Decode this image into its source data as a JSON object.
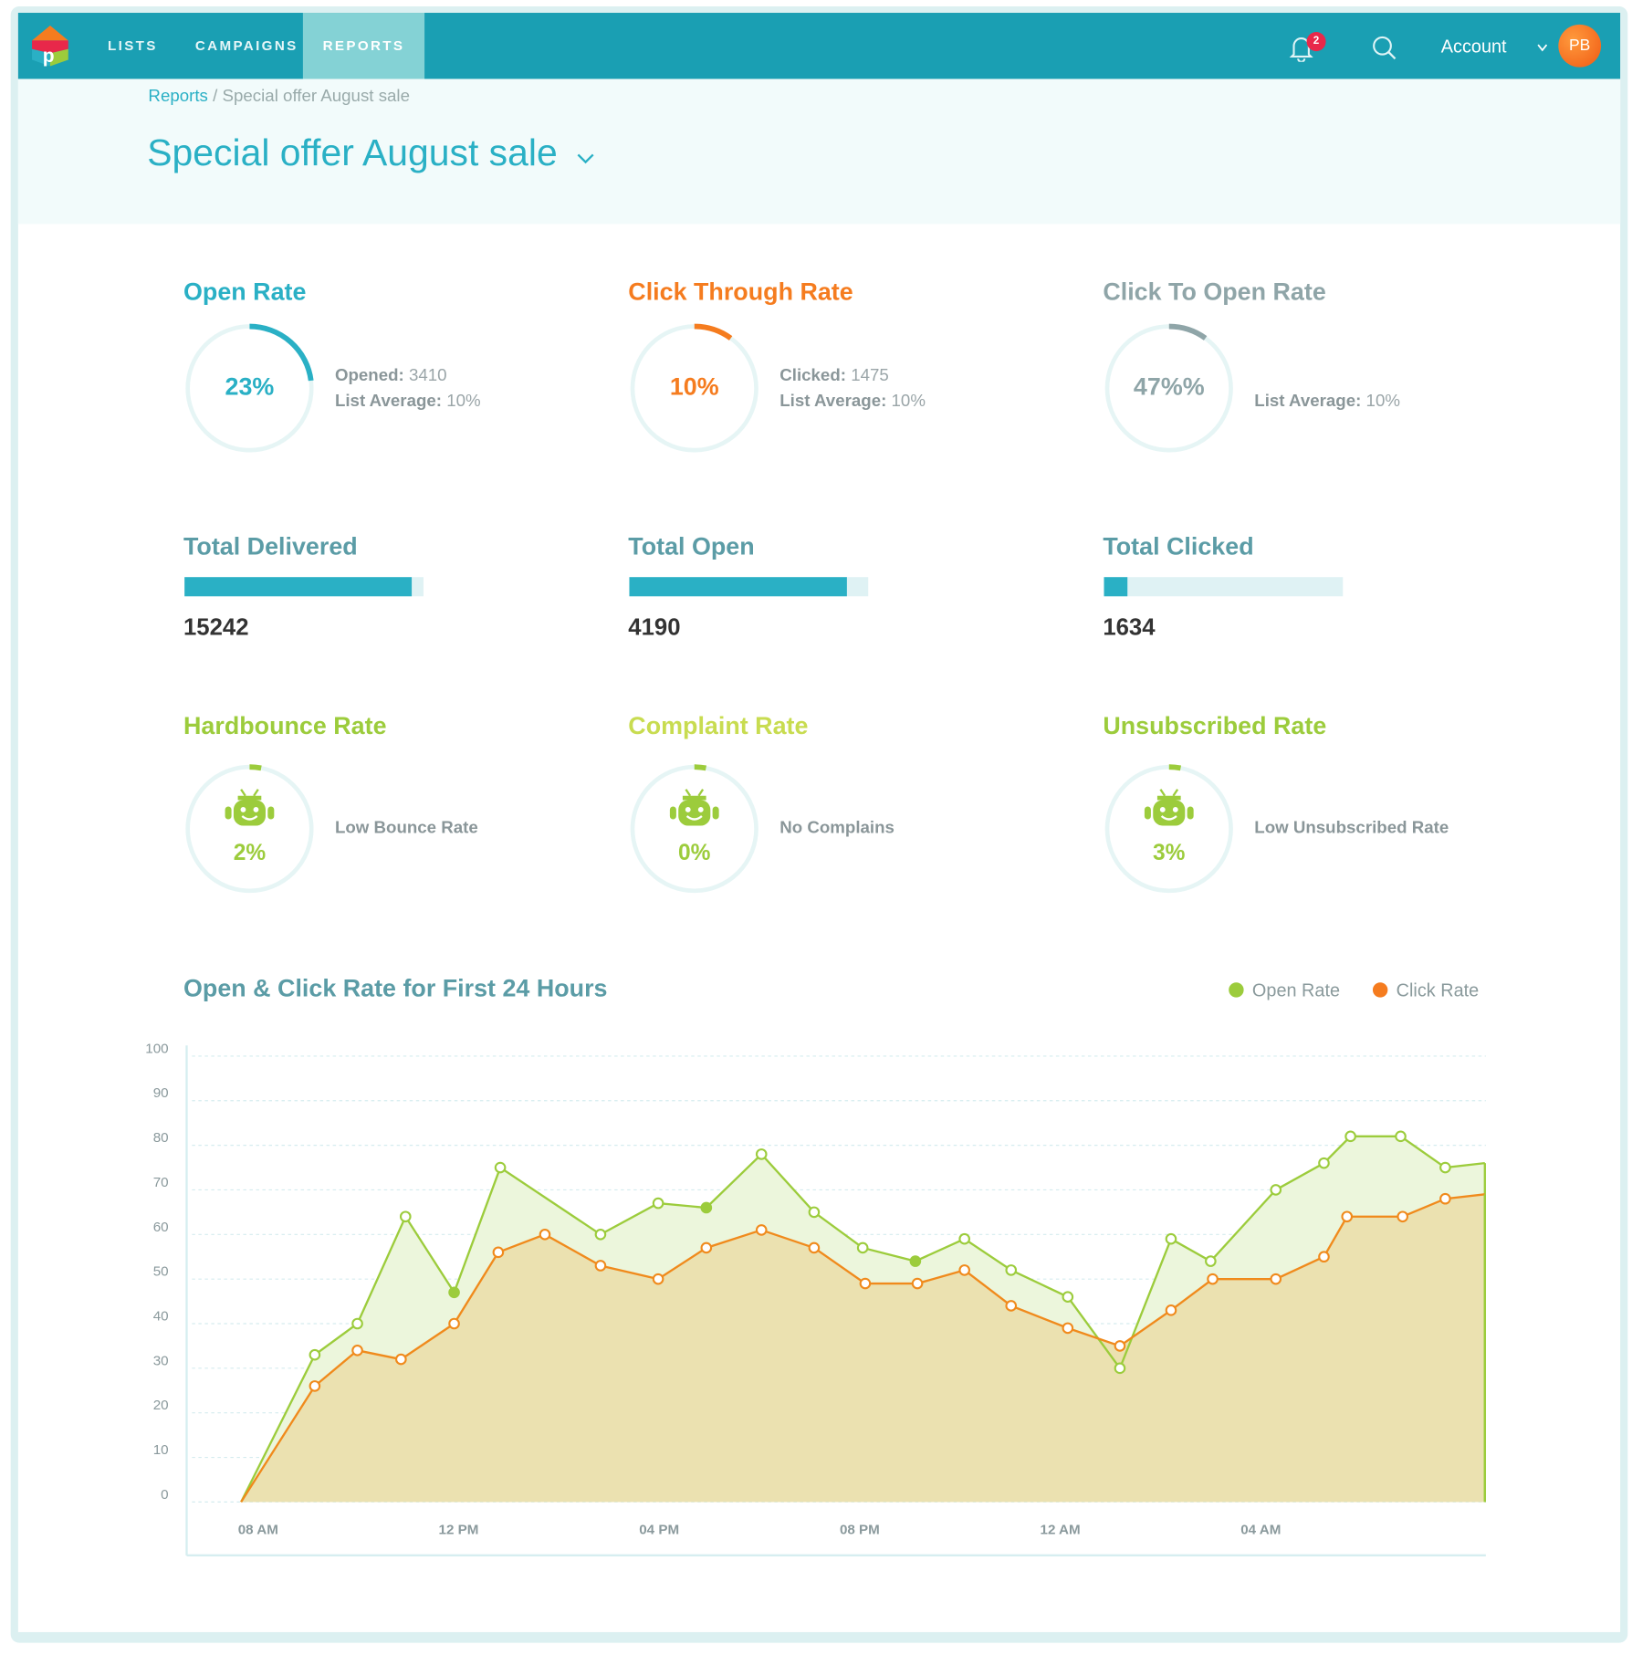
{
  "nav": {
    "items": [
      "LISTS",
      "CAMPAIGNS",
      "REPORTS"
    ],
    "active": "REPORTS",
    "notification_count": "2",
    "account_label": "Account",
    "avatar_initials": "PB"
  },
  "breadcrumb": {
    "root": "Reports",
    "separator": "/",
    "current": "Special offer August sale"
  },
  "page_title": "Special offer August sale",
  "colors": {
    "primary": "#1a9fb3",
    "teal": "#2ab0c5",
    "orange": "#f57c1f",
    "gray": "#8fa5a8",
    "green": "#9ccc3c",
    "yellow_green": "#c8dc50"
  },
  "rates": [
    {
      "title": "Open Rate",
      "value": "23%",
      "fill": 0.23,
      "lines": [
        {
          "label": "Opened:",
          "value": "3410"
        },
        {
          "label": "List Average:",
          "value": "10%"
        }
      ]
    },
    {
      "title": "Click Through Rate",
      "value": "10%",
      "fill": 0.1,
      "lines": [
        {
          "label": "Clicked:",
          "value": "1475"
        },
        {
          "label": "List Average:",
          "value": "10%"
        }
      ]
    },
    {
      "title": "Click To Open Rate",
      "value": "47%%",
      "fill": 0.1,
      "lines": [
        {
          "label": "List Average:",
          "value": "10%"
        }
      ]
    }
  ],
  "totals": [
    {
      "title": "Total Delivered",
      "value": "15242",
      "fill": 0.95
    },
    {
      "title": "Total Open",
      "value": "4190",
      "fill": 0.91
    },
    {
      "title": "Total Clicked",
      "value": "1634",
      "fill": 0.1
    }
  ],
  "health": [
    {
      "title": "Hardbounce Rate",
      "value": "2%",
      "fill": 0.03,
      "note": "Low Bounce Rate"
    },
    {
      "title": "Complaint Rate",
      "value": "0%",
      "fill": 0.03,
      "note": "No Complains"
    },
    {
      "title": "Unsubscribed Rate",
      "value": "3%",
      "fill": 0.03,
      "note": "Low Unsubscribed Rate"
    }
  ],
  "chart_data": {
    "type": "area",
    "title": "Open & Click Rate for First 24 Hours",
    "legend": [
      "Open Rate",
      "Click Rate"
    ],
    "legend_position": "top-right",
    "ylim": [
      0,
      100
    ],
    "yticks": [
      0,
      10,
      20,
      30,
      40,
      50,
      60,
      70,
      80,
      90,
      100
    ],
    "xlabel_unit": "hours after 08 AM",
    "xticks": [
      {
        "h": 0,
        "label": "08 AM"
      },
      {
        "h": 4,
        "label": "12 PM"
      },
      {
        "h": 8,
        "label": "04 PM"
      },
      {
        "h": 12,
        "label": "08 PM"
      },
      {
        "h": 16,
        "label": "12 AM"
      },
      {
        "h": 20,
        "label": "04 AM"
      }
    ],
    "series": [
      {
        "name": "Open Rate",
        "color": "#9ccc3c",
        "fill": "#ecf6dc",
        "points": [
          [
            -0.34,
            0
          ],
          [
            1.13,
            33
          ],
          [
            1.98,
            40
          ],
          [
            2.94,
            64
          ],
          [
            3.91,
            47
          ],
          [
            4.83,
            75
          ],
          [
            6.83,
            60
          ],
          [
            7.98,
            67
          ],
          [
            8.94,
            66
          ],
          [
            10.04,
            78
          ],
          [
            11.09,
            65
          ],
          [
            12.06,
            57
          ],
          [
            13.11,
            54
          ],
          [
            14.09,
            59
          ],
          [
            15.02,
            52
          ],
          [
            16.15,
            46
          ],
          [
            17.19,
            30
          ],
          [
            18.21,
            59
          ],
          [
            19.0,
            54
          ],
          [
            20.3,
            70
          ],
          [
            21.26,
            76
          ],
          [
            21.79,
            82
          ],
          [
            22.79,
            82
          ],
          [
            23.68,
            75
          ],
          [
            24.47,
            76
          ]
        ]
      },
      {
        "name": "Click Rate",
        "color": "#f08a1c",
        "fill": "#ebe1b0",
        "points": [
          [
            -0.34,
            0
          ],
          [
            1.13,
            26
          ],
          [
            1.98,
            34
          ],
          [
            2.85,
            32
          ],
          [
            3.91,
            40
          ],
          [
            4.79,
            56
          ],
          [
            5.72,
            60
          ],
          [
            6.83,
            53
          ],
          [
            7.98,
            50
          ],
          [
            8.94,
            57
          ],
          [
            10.04,
            61
          ],
          [
            11.09,
            57
          ],
          [
            12.11,
            49
          ],
          [
            13.15,
            49
          ],
          [
            14.09,
            52
          ],
          [
            15.02,
            44
          ],
          [
            16.15,
            39
          ],
          [
            17.19,
            35
          ],
          [
            18.21,
            43
          ],
          [
            19.04,
            50
          ],
          [
            20.3,
            50
          ],
          [
            21.26,
            55
          ],
          [
            21.72,
            64
          ],
          [
            22.83,
            64
          ],
          [
            23.68,
            68
          ],
          [
            24.47,
            69
          ]
        ]
      }
    ]
  }
}
